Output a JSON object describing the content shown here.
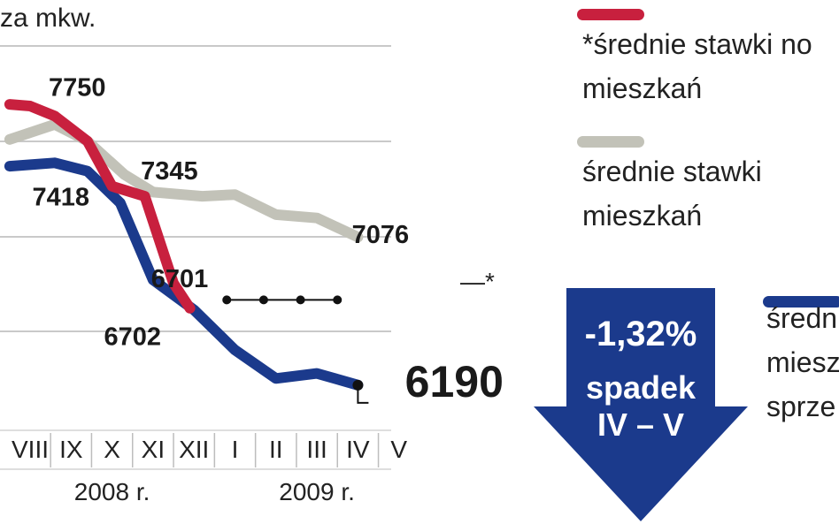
{
  "unit_label": "za mkw.",
  "legend": [
    {
      "name": "legend-offer-new",
      "color": "#c8203e",
      "lines": [
        "*średnie stawki no",
        "mieszkań"
      ]
    },
    {
      "name": "legend-offer",
      "color": "#c2c2b8",
      "lines": [
        "średnie stawki",
        "mieszkań"
      ]
    },
    {
      "name": "legend-sale",
      "color": "#1b3a8c",
      "lines": [
        "średn",
        "miesz",
        "sprze"
      ]
    }
  ],
  "badge": {
    "percent": "-1,32%",
    "label": "spadek",
    "range": "IV – V",
    "color": "#1b3a8c"
  },
  "chart_data": {
    "type": "line",
    "categories": [
      "VIII",
      "IX",
      "X",
      "XI",
      "XII",
      "I",
      "II",
      "III",
      "IV",
      "V"
    ],
    "year_labels": [
      {
        "text": "2008 r.",
        "under": [
          "VIII",
          "IX",
          "X",
          "XI",
          "XII"
        ]
      },
      {
        "text": "2009 r.",
        "under": [
          "I",
          "II",
          "III",
          "IV",
          "V"
        ]
      }
    ],
    "series": [
      {
        "key": "red",
        "color": "#c8203e",
        "values": [
          [
            -0.5,
            7870
          ],
          [
            0,
            7860
          ],
          [
            0.6,
            7800
          ],
          [
            1.4,
            7650
          ],
          [
            2,
            7380
          ],
          [
            2.8,
            7320
          ],
          [
            3.5,
            6800
          ],
          [
            3.9,
            6650
          ]
        ]
      },
      {
        "key": "gray",
        "color": "#c2c2b8",
        "values": [
          [
            -0.5,
            7660
          ],
          [
            0.6,
            7750
          ],
          [
            1.4,
            7650
          ],
          [
            2.3,
            7450
          ],
          [
            3,
            7345
          ],
          [
            4.2,
            7320
          ],
          [
            5,
            7330
          ],
          [
            6,
            7210
          ],
          [
            7,
            7190
          ],
          [
            8,
            7076
          ]
        ]
      },
      {
        "key": "blue",
        "color": "#1b3a8c",
        "values": [
          [
            -0.5,
            7500
          ],
          [
            0.6,
            7520
          ],
          [
            1.4,
            7470
          ],
          [
            2.2,
            7280
          ],
          [
            3,
            6820
          ],
          [
            4,
            6640
          ],
          [
            5,
            6400
          ],
          [
            6,
            6230
          ],
          [
            7,
            6260
          ],
          [
            8,
            6190
          ]
        ]
      }
    ],
    "dotted_points": [
      [
        4.8,
        6700
      ],
      [
        5.7,
        6700
      ],
      [
        6.6,
        6700
      ],
      [
        7.5,
        6700
      ]
    ],
    "data_labels": [
      {
        "text": "7750",
        "x": 1.15,
        "y": 7920
      },
      {
        "text": "7345",
        "x": 3.4,
        "y": 7420
      },
      {
        "text": "7418",
        "x": 0.75,
        "y": 7265
      },
      {
        "text": "6701",
        "x": 3.65,
        "y": 6775
      },
      {
        "text": "6702",
        "x": 2.5,
        "y": 6430
      },
      {
        "text": "7076",
        "x": 8.55,
        "y": 7040
      },
      {
        "text": "6190",
        "x": 9.15,
        "y": 6120
      }
    ],
    "asterisk_label": "—*",
    "ylim": [
      6020,
      8230
    ]
  }
}
